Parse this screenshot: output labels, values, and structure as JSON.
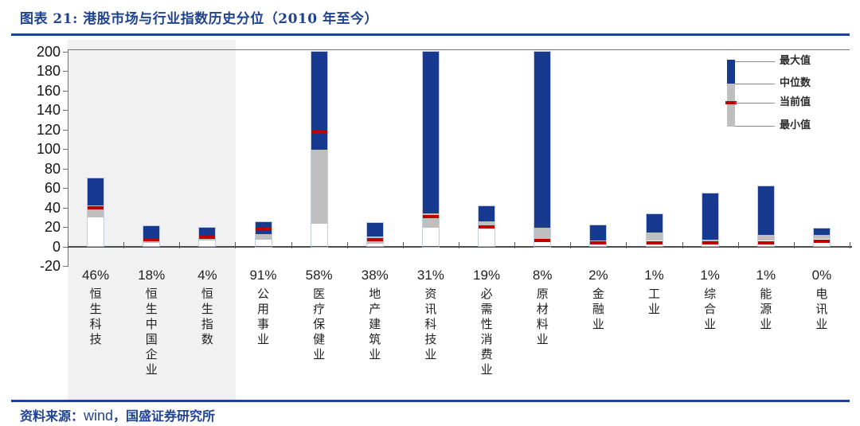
{
  "title": "图表 21:  港股市场与行业指数历史分位（2010 年至今）",
  "footer": {
    "prefix": "资料来源：",
    "source": "wind",
    "suffix": "，国盛证券研究所"
  },
  "colors": {
    "accent_blue": "#1F4390",
    "bar_blue": "#17398F",
    "bar_gray": "#BFBFBF",
    "bar_red": "#C00000",
    "panel_gray": "#F1F1F1"
  },
  "legend": {
    "items": [
      {
        "label": "最大值"
      },
      {
        "label": "中位数"
      },
      {
        "label": "当前值"
      },
      {
        "label": "最小值"
      }
    ]
  },
  "chart_data": {
    "type": "bar",
    "subtype": "floating-range-bars (min / median / current / max)",
    "title": "港股市场与行业指数历史分位（2010 年至今）",
    "xlabel": "",
    "ylabel": "",
    "ylim": [
      -20,
      200
    ],
    "grid": false,
    "legend_position": "top-right-inside",
    "y_ticks": [
      200,
      180,
      160,
      140,
      120,
      100,
      80,
      60,
      40,
      20,
      0,
      -20
    ],
    "categories": [
      "恒生科技",
      "恒生中国企业",
      "恒生指数",
      "公用事业",
      "医疗保健业",
      "地产建筑业",
      "资讯科技业",
      "必需性消费业",
      "原材料业",
      "金融业",
      "工业",
      "综合业",
      "能源业",
      "电讯业"
    ],
    "current_percentile_labels": [
      "46%",
      "18%",
      "4%",
      "91%",
      "58%",
      "38%",
      "31%",
      "19%",
      "8%",
      "2%",
      "1%",
      "1%",
      "1%",
      "0%"
    ],
    "series": [
      {
        "name": "最大值",
        "values": [
          70,
          21,
          19,
          25,
          200,
          24,
          200,
          41,
          200,
          22,
          33,
          54,
          62,
          18
        ]
      },
      {
        "name": "中位数",
        "values": [
          42,
          8,
          10,
          13,
          99,
          10,
          34,
          26,
          19,
          6,
          14,
          7,
          12,
          12
        ]
      },
      {
        "name": "当前值",
        "values": [
          40,
          7,
          9,
          18,
          117,
          7,
          31,
          20,
          6,
          4,
          4,
          4,
          4,
          5
        ]
      },
      {
        "name": "最小值",
        "values": [
          30,
          4,
          6,
          7,
          23,
          3,
          19,
          18,
          7,
          2,
          6,
          2,
          6,
          8
        ]
      }
    ],
    "clipped_at_top": [
      false,
      false,
      false,
      false,
      true,
      false,
      true,
      false,
      true,
      false,
      false,
      false,
      false,
      false
    ],
    "shaded_category_count": 3
  }
}
